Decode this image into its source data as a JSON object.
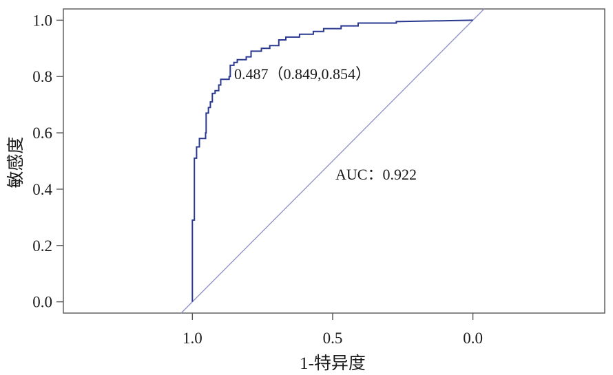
{
  "chart_data": {
    "type": "line",
    "xlabel": "1-特异度",
    "ylabel": "敏感度",
    "x_reversed": true,
    "xlim": [
      1.46,
      -0.47
    ],
    "ylim": [
      -0.04,
      1.04
    ],
    "x_ticks": [
      1.0,
      0.5,
      0.0
    ],
    "x_tick_labels": [
      "1.0",
      "0.5",
      "0.0"
    ],
    "y_ticks": [
      0.0,
      0.2,
      0.4,
      0.6,
      0.8,
      1.0
    ],
    "y_tick_labels": [
      "0.0",
      "0.2",
      "0.4",
      "0.6",
      "0.8",
      "1.0"
    ],
    "grid": false,
    "legend": "none",
    "frame_color": "#555555",
    "series": [
      {
        "color": "#2a3890",
        "x": [
          1.0,
          1.0,
          0.993,
          0.993,
          0.985,
          0.985,
          0.975,
          0.975,
          0.953,
          0.953,
          0.951,
          0.951,
          0.943,
          0.943,
          0.936,
          0.936,
          0.929,
          0.929,
          0.919,
          0.919,
          0.906,
          0.906,
          0.899,
          0.899,
          0.869,
          0.869,
          0.865,
          0.865,
          0.852,
          0.852,
          0.84,
          0.84,
          0.808,
          0.808,
          0.791,
          0.791,
          0.754,
          0.754,
          0.724,
          0.724,
          0.692,
          0.692,
          0.667,
          0.667,
          0.618,
          0.618,
          0.569,
          0.569,
          0.532,
          0.532,
          0.47,
          0.47,
          0.409,
          0.409,
          0.273,
          0.273,
          0.0
        ],
        "y": [
          0.0,
          0.29,
          0.29,
          0.51,
          0.51,
          0.55,
          0.55,
          0.58,
          0.58,
          0.6,
          0.6,
          0.67,
          0.67,
          0.69,
          0.69,
          0.71,
          0.71,
          0.74,
          0.74,
          0.75,
          0.75,
          0.77,
          0.77,
          0.79,
          0.79,
          0.8,
          0.8,
          0.84,
          0.84,
          0.85,
          0.85,
          0.86,
          0.86,
          0.87,
          0.87,
          0.89,
          0.89,
          0.9,
          0.9,
          0.91,
          0.91,
          0.93,
          0.93,
          0.94,
          0.94,
          0.95,
          0.95,
          0.96,
          0.96,
          0.97,
          0.97,
          0.98,
          0.98,
          0.99,
          0.99,
          0.995,
          1.0
        ]
      }
    ],
    "reference_line": {
      "color": "#8d90c9",
      "x": [
        1.04,
        -0.04
      ],
      "y": [
        -0.04,
        1.04
      ]
    },
    "annotations": [
      {
        "text": "0.487（0.849,0.854）"
      },
      {
        "text": "AUC：0.922"
      }
    ]
  }
}
